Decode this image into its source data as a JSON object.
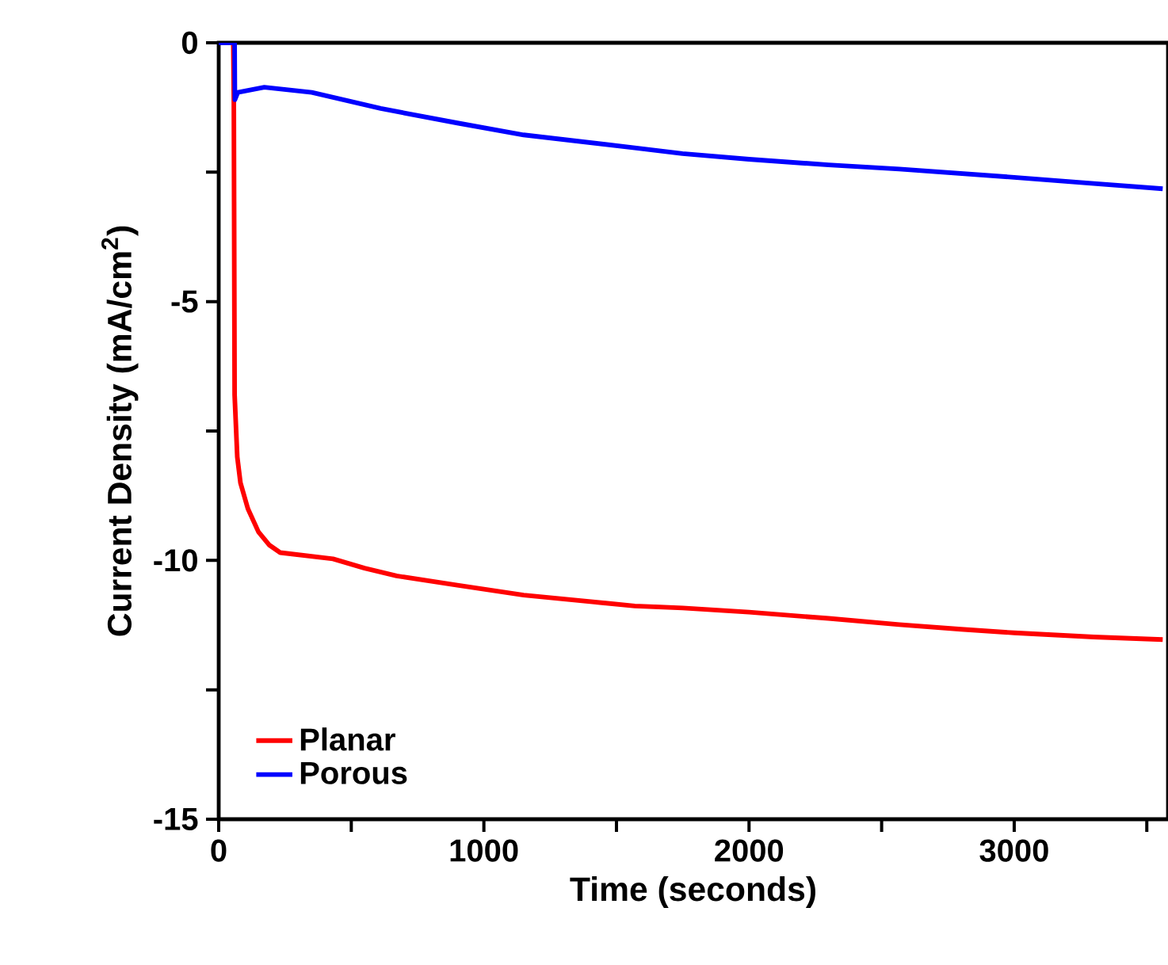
{
  "chart_data": {
    "type": "line",
    "xlabel": "Time (seconds)",
    "ylabel": "Current Density (mA/cm$^{2}$)",
    "xlim": [
      0,
      3580
    ],
    "ylim": [
      -15,
      0
    ],
    "xticks": [
      0,
      {
        "value": 500,
        "label": null
      },
      1000,
      {
        "value": 1500,
        "label": null
      },
      2000,
      {
        "value": 2500,
        "label": null
      },
      3000,
      {
        "value": 3500,
        "label": null
      }
    ],
    "yticks": [
      -15,
      {
        "value": -12.5,
        "label": null
      },
      -10,
      {
        "value": -7.5,
        "label": null
      },
      -5,
      {
        "value": -2.5,
        "label": null
      },
      0
    ],
    "legend": "bottom left",
    "grid": false,
    "marker": "none",
    "line_style": "solid",
    "series": [
      {
        "name": "Planar",
        "color": "#ff0000",
        "x": [
          0,
          55,
          57,
          60,
          70,
          82,
          110,
          150,
          190,
          232,
          431,
          550,
          671,
          900,
          1150,
          1569,
          1750,
          2000,
          2300,
          2567,
          2800,
          3000,
          3300,
          3560
        ],
        "values": [
          0,
          0,
          -1.1,
          -6.8,
          -8.0,
          -8.5,
          -9.0,
          -9.45,
          -9.7,
          -9.85,
          -9.97,
          -10.15,
          -10.3,
          -10.48,
          -10.67,
          -10.88,
          -10.92,
          -11.0,
          -11.12,
          -11.24,
          -11.33,
          -11.4,
          -11.48,
          -11.53
        ]
      },
      {
        "name": "Porous",
        "color": "#0000ff",
        "x": [
          0,
          60,
          61,
          72,
          172,
          351,
          611,
          900,
          1150,
          1569,
          1749,
          2000,
          2300,
          2567,
          3000,
          3300,
          3560
        ],
        "values": [
          0,
          0,
          -1.1,
          -0.96,
          -0.86,
          -0.96,
          -1.27,
          -1.55,
          -1.78,
          -2.03,
          -2.14,
          -2.25,
          -2.36,
          -2.44,
          -2.6,
          -2.72,
          -2.82
        ]
      }
    ]
  }
}
